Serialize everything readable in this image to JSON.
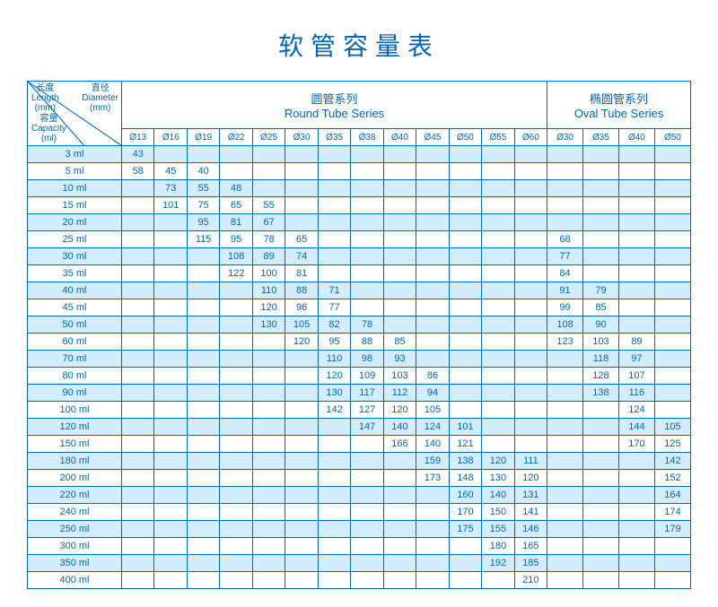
{
  "title": "软管容量表",
  "corner": {
    "length_cn": "长度",
    "length_en": "Length",
    "length_unit": "(mm)",
    "diameter_cn": "直径",
    "diameter_en": "Diameter",
    "diameter_unit": "(mm)",
    "capacity_cn": "容量",
    "capacity_en": "Capacity",
    "capacity_unit": "(ml)"
  },
  "series": [
    {
      "cn": "圆管系列",
      "en": "Round Tube Series",
      "span": 13
    },
    {
      "cn": "椭圆管系列",
      "en": "Oval Tube Series",
      "span": 4
    }
  ],
  "diameters": [
    "Ø13",
    "Ø16",
    "Ø19",
    "Ø22",
    "Ø25",
    "Ø30",
    "Ø35",
    "Ø38",
    "Ø40",
    "Ø45",
    "Ø50",
    "Ø55",
    "Ø60",
    "Ø30",
    "Ø35",
    "Ø40",
    "Ø50"
  ],
  "rows": [
    {
      "label": "3 ml",
      "cells": [
        43,
        "",
        "",
        "",
        "",
        "",
        "",
        "",
        "",
        "",
        "",
        "",
        "",
        "",
        "",
        "",
        ""
      ]
    },
    {
      "label": "5 ml",
      "cells": [
        58,
        45,
        40,
        "",
        "",
        "",
        "",
        "",
        "",
        "",
        "",
        "",
        "",
        "",
        "",
        "",
        ""
      ]
    },
    {
      "label": "10 ml",
      "cells": [
        "",
        73,
        55,
        48,
        "",
        "",
        "",
        "",
        "",
        "",
        "",
        "",
        "",
        "",
        "",
        "",
        ""
      ]
    },
    {
      "label": "15 ml",
      "cells": [
        "",
        101,
        75,
        65,
        55,
        "",
        "",
        "",
        "",
        "",
        "",
        "",
        "",
        "",
        "",
        "",
        ""
      ]
    },
    {
      "label": "20 ml",
      "cells": [
        "",
        "",
        95,
        81,
        67,
        "",
        "",
        "",
        "",
        "",
        "",
        "",
        "",
        "",
        "",
        "",
        ""
      ]
    },
    {
      "label": "25 ml",
      "cells": [
        "",
        "",
        115,
        95,
        78,
        65,
        "",
        "",
        "",
        "",
        "",
        "",
        "",
        68,
        "",
        "",
        ""
      ]
    },
    {
      "label": "30 ml",
      "cells": [
        "",
        "",
        "",
        108,
        89,
        74,
        "",
        "",
        "",
        "",
        "",
        "",
        "",
        77,
        "",
        "",
        ""
      ]
    },
    {
      "label": "35 ml",
      "cells": [
        "",
        "",
        "",
        122,
        100,
        81,
        "",
        "",
        "",
        "",
        "",
        "",
        "",
        84,
        "",
        "",
        ""
      ]
    },
    {
      "label": "40 ml",
      "cells": [
        "",
        "",
        "",
        "",
        110,
        88,
        71,
        "",
        "",
        "",
        "",
        "",
        "",
        91,
        79,
        "",
        ""
      ]
    },
    {
      "label": "45 ml",
      "cells": [
        "",
        "",
        "",
        "",
        120,
        96,
        77,
        "",
        "",
        "",
        "",
        "",
        "",
        99,
        85,
        "",
        ""
      ]
    },
    {
      "label": "50 ml",
      "cells": [
        "",
        "",
        "",
        "",
        130,
        105,
        82,
        78,
        "",
        "",
        "",
        "",
        "",
        108,
        90,
        "",
        ""
      ]
    },
    {
      "label": "60 ml",
      "cells": [
        "",
        "",
        "",
        "",
        "",
        120,
        95,
        88,
        85,
        "",
        "",
        "",
        "",
        123,
        103,
        89,
        ""
      ]
    },
    {
      "label": "70 ml",
      "cells": [
        "",
        "",
        "",
        "",
        "",
        "",
        110,
        98,
        93,
        "",
        "",
        "",
        "",
        "",
        118,
        97,
        ""
      ]
    },
    {
      "label": "80 ml",
      "cells": [
        "",
        "",
        "",
        "",
        "",
        "",
        120,
        109,
        103,
        86,
        "",
        "",
        "",
        "",
        128,
        107,
        ""
      ]
    },
    {
      "label": "90 ml",
      "cells": [
        "",
        "",
        "",
        "",
        "",
        "",
        130,
        117,
        112,
        94,
        "",
        "",
        "",
        "",
        138,
        116,
        ""
      ]
    },
    {
      "label": "100 ml",
      "cells": [
        "",
        "",
        "",
        "",
        "",
        "",
        142,
        127,
        120,
        105,
        "",
        "",
        "",
        "",
        "",
        124,
        ""
      ]
    },
    {
      "label": "120 ml",
      "cells": [
        "",
        "",
        "",
        "",
        "",
        "",
        "",
        147,
        140,
        124,
        101,
        "",
        "",
        "",
        "",
        144,
        105
      ]
    },
    {
      "label": "150 ml",
      "cells": [
        "",
        "",
        "",
        "",
        "",
        "",
        "",
        "",
        166,
        140,
        121,
        "",
        "",
        "",
        "",
        170,
        125
      ]
    },
    {
      "label": "180 ml",
      "cells": [
        "",
        "",
        "",
        "",
        "",
        "",
        "",
        "",
        "",
        159,
        138,
        120,
        111,
        "",
        "",
        "",
        142
      ]
    },
    {
      "label": "200 ml",
      "cells": [
        "",
        "",
        "",
        "",
        "",
        "",
        "",
        "",
        "",
        173,
        148,
        130,
        120,
        "",
        "",
        "",
        152
      ]
    },
    {
      "label": "220 ml",
      "cells": [
        "",
        "",
        "",
        "",
        "",
        "",
        "",
        "",
        "",
        "",
        160,
        140,
        131,
        "",
        "",
        "",
        164
      ]
    },
    {
      "label": "240 ml",
      "cells": [
        "",
        "",
        "",
        "",
        "",
        "",
        "",
        "",
        "",
        "",
        170,
        150,
        141,
        "",
        "",
        "",
        174
      ]
    },
    {
      "label": "250 ml",
      "cells": [
        "",
        "",
        "",
        "",
        "",
        "",
        "",
        "",
        "",
        "",
        175,
        155,
        146,
        "",
        "",
        "",
        179
      ]
    },
    {
      "label": "300 ml",
      "cells": [
        "",
        "",
        "",
        "",
        "",
        "",
        "",
        "",
        "",
        "",
        "",
        180,
        165,
        "",
        "",
        "",
        ""
      ]
    },
    {
      "label": "350 ml",
      "cells": [
        "",
        "",
        "",
        "",
        "",
        "",
        "",
        "",
        "",
        "",
        "",
        192,
        185,
        "",
        "",
        "",
        ""
      ]
    },
    {
      "label": "400 ml",
      "cells": [
        "",
        "",
        "",
        "",
        "",
        "",
        "",
        "",
        "",
        "",
        "",
        "",
        210,
        "",
        "",
        "",
        ""
      ]
    }
  ],
  "style": {
    "text_color": "#0066b3",
    "border_color": "#0066b3",
    "stripe_even": "#d4edfc",
    "stripe_odd": "#ffffff",
    "title_fontsize": 28,
    "body_fontsize": 11
  }
}
